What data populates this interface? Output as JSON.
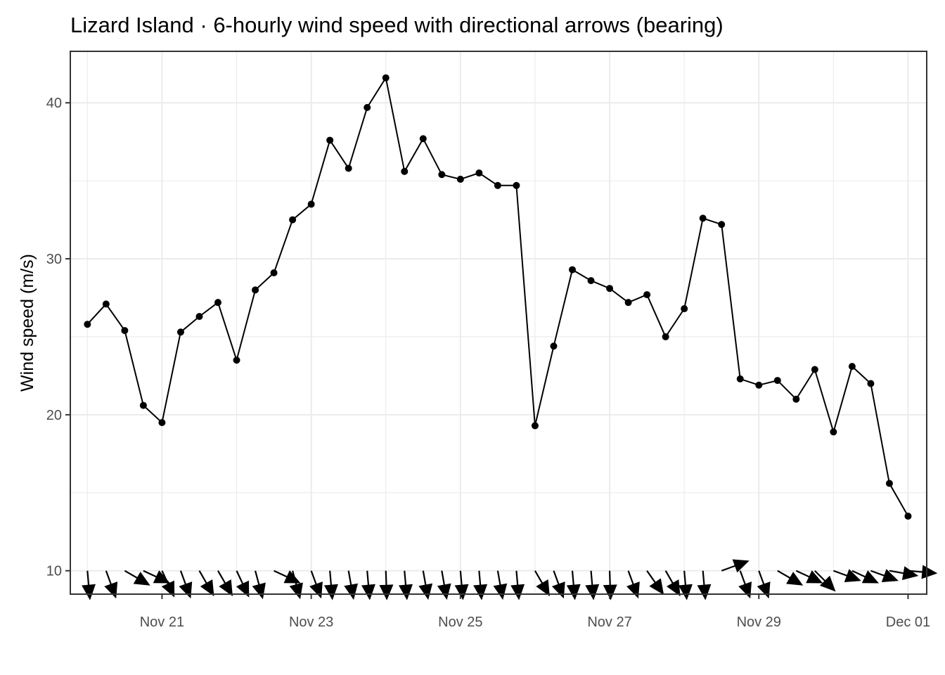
{
  "chart_data": {
    "type": "line",
    "title": "Lizard Island · 6-hourly wind speed with directional arrows (bearing)",
    "xlabel": "",
    "ylabel": "Wind speed (m/s)",
    "x_tick_labels": [
      "Nov 21",
      "Nov 23",
      "Nov 25",
      "Nov 27",
      "Nov 29",
      "Dec 01"
    ],
    "y_ticks": [
      10,
      20,
      30,
      40
    ],
    "ylim": [
      8.5,
      43.3
    ],
    "xlim": [
      "2023-11-19T18:30",
      "2023-12-01T06:00"
    ],
    "grid": true,
    "x_start": "2023-11-20T00:00",
    "step_hours": 6,
    "wind_speed": [
      25.8,
      27.1,
      25.4,
      20.6,
      19.5,
      25.3,
      26.3,
      27.2,
      23.5,
      28.0,
      29.1,
      32.5,
      33.5,
      37.6,
      35.8,
      39.7,
      41.6,
      35.6,
      37.7,
      35.4,
      35.1,
      35.5,
      34.7,
      34.7,
      19.3,
      24.4,
      29.3,
      28.6,
      28.1,
      27.2,
      27.7,
      25.0,
      26.8,
      32.6,
      32.2,
      22.3,
      21.9,
      22.2,
      21.0,
      22.9,
      18.9,
      23.1,
      22.0,
      15.6,
      13.5
    ],
    "bearing_deg": [
      175,
      160,
      120,
      115,
      155,
      160,
      150,
      150,
      155,
      165,
      115,
      165,
      160,
      175,
      170,
      175,
      178,
      175,
      170,
      170,
      175,
      175,
      170,
      175,
      150,
      160,
      175,
      175,
      178,
      160,
      145,
      150,
      175,
      175,
      70,
      160,
      160,
      120,
      115,
      135,
      110,
      115,
      110,
      100,
      95
    ]
  }
}
